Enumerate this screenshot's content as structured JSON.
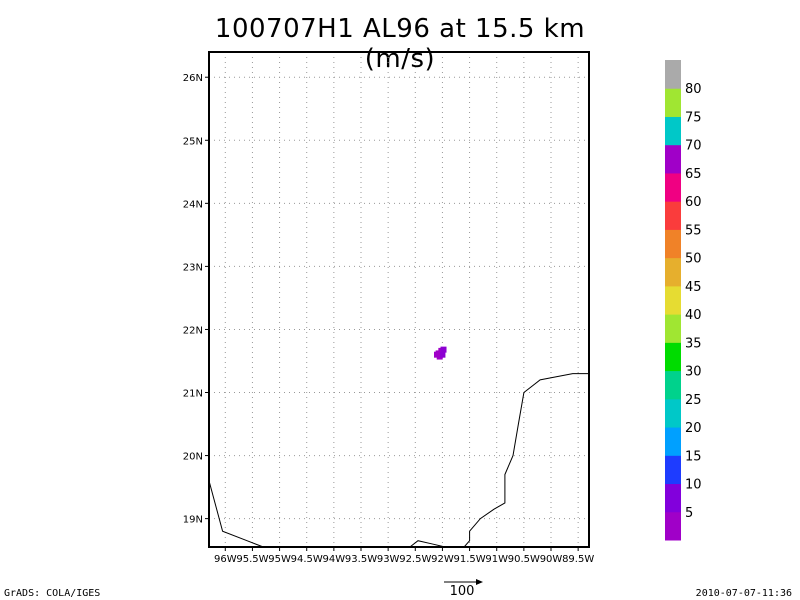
{
  "title": "100707H1 AL96 at 15.5 km (m/s)",
  "footer": {
    "credit": "GrADS: COLA/IGES",
    "timestamp": "2010-07-07-11:36",
    "vector_scale_label": "100"
  },
  "map": {
    "lon_range": [
      -96.3,
      -89.3
    ],
    "lat_range": [
      18.55,
      26.4
    ],
    "x_ticks": [
      "96W",
      "95.5W",
      "95W",
      "94.5W",
      "94W",
      "93.5W",
      "93W",
      "92.5W",
      "92W",
      "91.5W",
      "91W",
      "90.5W",
      "90W",
      "89.5W"
    ],
    "x_tick_values": [
      -96,
      -95.5,
      -95,
      -94.5,
      -94,
      -93.5,
      -93,
      -92.5,
      -92,
      -91.5,
      -91,
      -90.5,
      -90,
      -89.5
    ],
    "y_ticks": [
      "19N",
      "20N",
      "21N",
      "22N",
      "23N",
      "24N",
      "25N",
      "26N"
    ],
    "y_tick_values": [
      19,
      20,
      21,
      22,
      23,
      24,
      25,
      26
    ],
    "grid": true,
    "coastlines": [
      [
        [
          -96.3,
          19.6
        ],
        [
          -96.05,
          18.8
        ],
        [
          -95.6,
          18.65
        ],
        [
          -95.3,
          18.55
        ]
      ],
      [
        [
          -92.6,
          18.55
        ],
        [
          -92.45,
          18.65
        ],
        [
          -92.2,
          18.6
        ],
        [
          -91.95,
          18.55
        ]
      ],
      [
        [
          -91.6,
          18.55
        ],
        [
          -91.5,
          18.65
        ],
        [
          -91.5,
          18.8
        ],
        [
          -91.3,
          19.0
        ],
        [
          -91.05,
          19.15
        ],
        [
          -90.85,
          19.25
        ],
        [
          -90.85,
          19.7
        ],
        [
          -90.7,
          20.0
        ],
        [
          -90.6,
          20.5
        ],
        [
          -90.5,
          21.0
        ],
        [
          -90.2,
          21.2
        ],
        [
          -89.6,
          21.3
        ],
        [
          -89.3,
          21.3
        ]
      ]
    ],
    "data_cells": [
      {
        "lon": -92.07,
        "lat": 21.62,
        "color": "#a000c8"
      },
      {
        "lon": -92.02,
        "lat": 21.66,
        "color": "#a000c8"
      },
      {
        "lon": -91.98,
        "lat": 21.68,
        "color": "#8c00d2"
      },
      {
        "lon": -92.05,
        "lat": 21.57,
        "color": "#a000c8"
      },
      {
        "lon": -92.0,
        "lat": 21.6,
        "color": "#8c00d2"
      },
      {
        "lon": -92.1,
        "lat": 21.6,
        "color": "#a000c8"
      }
    ]
  },
  "colorbar": {
    "labels": [
      "5",
      "10",
      "15",
      "20",
      "25",
      "30",
      "35",
      "40",
      "45",
      "50",
      "55",
      "60",
      "65",
      "70",
      "75",
      "80"
    ],
    "colors": [
      "#a000c8",
      "#8200dc",
      "#1e3cff",
      "#00a0ff",
      "#00c8c8",
      "#00d28c",
      "#00dc00",
      "#a0e632",
      "#e6dc32",
      "#e6af2d",
      "#f08228",
      "#fa3c3c",
      "#f00082",
      "#a000c8",
      "#00c8c8",
      "#a0e632",
      "#aaaaaa"
    ]
  }
}
